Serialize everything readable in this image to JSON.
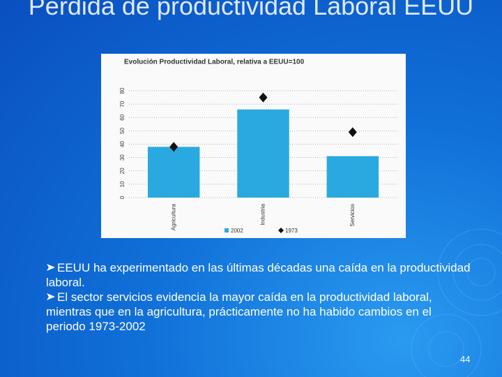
{
  "title": "Pérdida de productividad Laboral EEUU",
  "chart_data": {
    "type": "bar",
    "title": "Evolución Productividad Laboral, relativa a EEUU=100",
    "categories": [
      "Agricultura",
      "Industria",
      "Servicios"
    ],
    "series": [
      {
        "name": "2002",
        "color": "#29a9e0",
        "marker": "bar",
        "values": [
          38,
          66,
          31
        ]
      },
      {
        "name": "1973",
        "color": "#111111",
        "marker": "diamond",
        "values": [
          38,
          75,
          49
        ]
      }
    ],
    "ylim": [
      0,
      80
    ],
    "yticks": [
      0,
      10,
      20,
      30,
      40,
      50,
      60,
      70,
      80
    ],
    "grid": true,
    "legend": "bottom"
  },
  "bullets": [
    "EEUU ha experimentado en las últimas décadas una caída en la productividad laboral.",
    "El sector servicios evidencia la mayor caída en la productividad laboral, mientras que en la agricultura, prácticamente no ha habido cambios en el periodo 1973-2002"
  ],
  "page_number": "44"
}
